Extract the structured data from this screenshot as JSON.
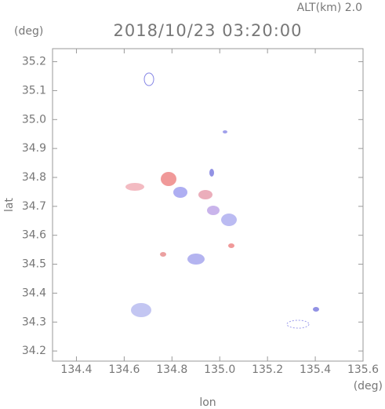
{
  "chart_data": {
    "type": "map-grid",
    "title": "2018/10/23 03:20:00",
    "subtitle": "ALT(km) 2.0",
    "y_unit": "(deg)",
    "x_unit": "(deg)",
    "xlabel": "lon",
    "ylabel": "lat",
    "xlim": [
      134.3,
      135.6
    ],
    "ylim": [
      34.165,
      35.245
    ],
    "xticks": [
      134.4,
      134.6,
      134.8,
      {
        "value": 135.0,
        "label": "135.0"
      },
      135.2,
      135.4,
      135.6
    ],
    "yticks": [
      34.2,
      34.3,
      34.4,
      34.5,
      34.6,
      34.7,
      34.8,
      34.9,
      {
        "value": 35.0,
        "label": "35.0"
      },
      35.1,
      35.2
    ]
  }
}
